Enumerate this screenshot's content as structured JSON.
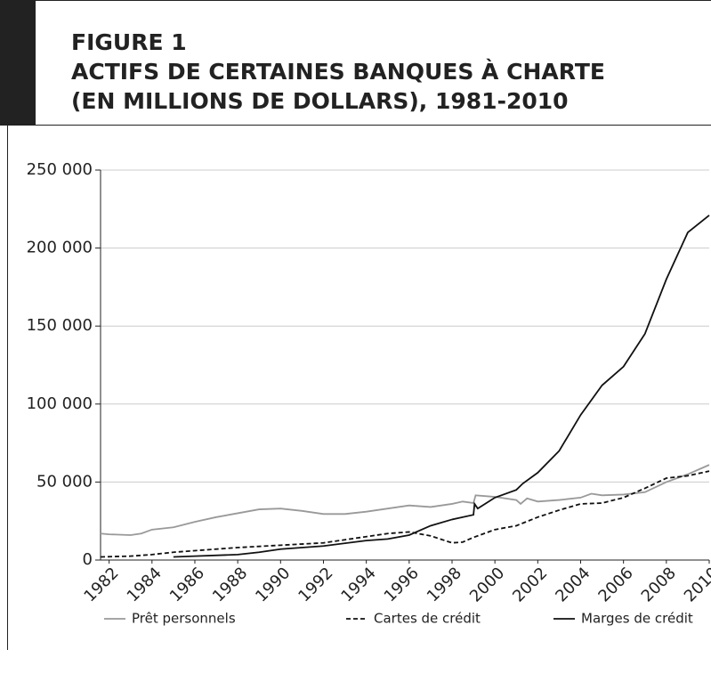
{
  "chart_data": {
    "type": "line",
    "title_lines": [
      "FIGURE 1",
      "ACTIFS DE CERTAINES BANQUES À CHARTE",
      "(EN MILLIONS DE DOLLARS), 1981-2010"
    ],
    "xlim": [
      1981.6,
      2010
    ],
    "xticks": [
      1982,
      1984,
      1986,
      1988,
      1990,
      1992,
      1994,
      1996,
      1998,
      2000,
      2002,
      2004,
      2006,
      2008,
      2010
    ],
    "ylim": [
      0,
      250000
    ],
    "yticks": [
      {
        "value": 0,
        "label": "0"
      },
      {
        "value": 50000,
        "label": "50 000"
      },
      {
        "value": 100000,
        "label": "100 000"
      },
      {
        "value": 150000,
        "label": "150 000"
      },
      {
        "value": 200000,
        "label": "200 000"
      },
      {
        "value": 250000,
        "label": "250 000"
      }
    ],
    "grid": true,
    "series": [
      {
        "name": "Prêt personnels",
        "color": "#999999",
        "dash": "solid",
        "x": [
          1981.6,
          1982,
          1983,
          1983.5,
          1984,
          1985,
          1986,
          1987,
          1988,
          1989,
          1990,
          1991,
          1992,
          1993,
          1994,
          1995,
          1996,
          1997,
          1998,
          1998.5,
          1999,
          1999.1,
          2000,
          2001,
          2001.2,
          2001.5,
          2002,
          2003,
          2004,
          2004.5,
          2005,
          2006,
          2007,
          2008,
          2009,
          2010
        ],
        "values": [
          17000,
          16500,
          16000,
          17000,
          19500,
          21000,
          24500,
          27500,
          30000,
          32500,
          33000,
          31500,
          29500,
          29500,
          31000,
          33000,
          35000,
          34000,
          36000,
          37500,
          36500,
          41500,
          40500,
          38500,
          36000,
          39500,
          37500,
          38500,
          40000,
          42500,
          41500,
          42000,
          43500,
          50000,
          55000,
          61000
        ]
      },
      {
        "name": "Cartes de crédit",
        "color": "#111111",
        "dash": "dashed",
        "x": [
          1981.6,
          1983,
          1984,
          1985,
          1986,
          1988,
          1990,
          1992,
          1994,
          1995,
          1996,
          1997,
          1998,
          1998.5,
          1999,
          2000,
          2001,
          2002,
          2003,
          2004,
          2005,
          2006,
          2007,
          2008,
          2009,
          2010
        ],
        "values": [
          2000,
          2500,
          3500,
          5000,
          6000,
          8000,
          9500,
          11000,
          15000,
          17000,
          18000,
          15500,
          11000,
          11500,
          14500,
          19500,
          22000,
          27500,
          32000,
          36000,
          36500,
          40000,
          46000,
          52500,
          54000,
          57000
        ]
      },
      {
        "name": "Marges de crédit",
        "color": "#111111",
        "dash": "solid",
        "x": [
          1985,
          1986,
          1988,
          1989,
          1990,
          1992,
          1994,
          1995,
          1996,
          1997,
          1998,
          1999,
          1999.05,
          1999.2,
          2000,
          2001,
          2001.3,
          2002,
          2003,
          2004,
          2005,
          2006,
          2007,
          2008,
          2009,
          2010
        ],
        "values": [
          2000,
          2500,
          3500,
          5000,
          7000,
          9000,
          12500,
          13500,
          16000,
          22000,
          26000,
          29000,
          36000,
          33000,
          40000,
          45000,
          49000,
          56000,
          70000,
          93000,
          112000,
          124000,
          145000,
          180000,
          210000,
          221000
        ]
      }
    ]
  }
}
